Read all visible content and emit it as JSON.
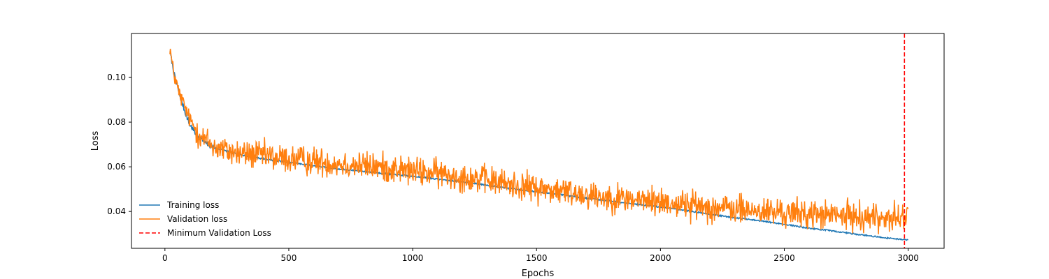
{
  "chart_data": {
    "type": "line",
    "title": "",
    "xlabel": "Epochs",
    "ylabel": "Loss",
    "xlim": [
      -135,
      3145
    ],
    "ylim": [
      0.0235,
      0.1197
    ],
    "x_ticks": [
      0,
      500,
      1000,
      1500,
      2000,
      2500,
      3000
    ],
    "x_tick_labels": [
      "0",
      "500",
      "1000",
      "1500",
      "2000",
      "2500",
      "3000"
    ],
    "y_ticks": [
      0.04,
      0.06,
      0.08,
      0.1
    ],
    "y_tick_labels": [
      "0.04",
      "0.06",
      "0.08",
      "0.10"
    ],
    "grid": false,
    "legend_position": "lower-left",
    "series": [
      {
        "name": "Training loss",
        "color": "#1f77b4",
        "style": "solid",
        "x": [
          20,
          40,
          60,
          80,
          100,
          130,
          160,
          200,
          250,
          300,
          400,
          500,
          600,
          700,
          800,
          900,
          1000,
          1100,
          1200,
          1300,
          1400,
          1500,
          1600,
          1700,
          1800,
          1900,
          2000,
          2100,
          2200,
          2300,
          2400,
          2500,
          2600,
          2700,
          2800,
          2900,
          3000
        ],
        "y": [
          0.112,
          0.1,
          0.092,
          0.085,
          0.079,
          0.074,
          0.071,
          0.0685,
          0.067,
          0.0655,
          0.0635,
          0.062,
          0.0605,
          0.059,
          0.058,
          0.0568,
          0.0558,
          0.0545,
          0.0533,
          0.0518,
          0.0502,
          0.0488,
          0.0475,
          0.046,
          0.0447,
          0.0433,
          0.042,
          0.0405,
          0.0388,
          0.0372,
          0.0358,
          0.0343,
          0.0325,
          0.0312,
          0.0297,
          0.0283,
          0.0272
        ]
      },
      {
        "name": "Validation loss",
        "color": "#ff7f0e",
        "style": "solid",
        "x": [
          20,
          30,
          40,
          60,
          80,
          100,
          130,
          160,
          200,
          250,
          300,
          350,
          400,
          450,
          500,
          550,
          600,
          650,
          700,
          750,
          800,
          850,
          900,
          950,
          1000,
          1050,
          1100,
          1150,
          1200,
          1250,
          1300,
          1350,
          1400,
          1450,
          1500,
          1550,
          1600,
          1650,
          1700,
          1750,
          1800,
          1850,
          1900,
          1950,
          2000,
          2050,
          2100,
          2150,
          2200,
          2250,
          2300,
          2350,
          2400,
          2450,
          2500,
          2550,
          2600,
          2650,
          2700,
          2750,
          2800,
          2850,
          2900,
          2950,
          3000
        ],
        "y": [
          0.114,
          0.105,
          0.1,
          0.092,
          0.087,
          0.081,
          0.076,
          0.072,
          0.069,
          0.067,
          0.066,
          0.0655,
          0.065,
          0.064,
          0.0635,
          0.063,
          0.0625,
          0.062,
          0.0615,
          0.061,
          0.0605,
          0.06,
          0.0595,
          0.0588,
          0.058,
          0.0575,
          0.057,
          0.0563,
          0.0555,
          0.055,
          0.054,
          0.053,
          0.052,
          0.0512,
          0.0505,
          0.0498,
          0.049,
          0.0485,
          0.0478,
          0.047,
          0.0463,
          0.0458,
          0.0452,
          0.0448,
          0.0443,
          0.0437,
          0.0432,
          0.0426,
          0.042,
          0.0415,
          0.041,
          0.0405,
          0.04,
          0.0397,
          0.0393,
          0.039,
          0.0388,
          0.0385,
          0.0382,
          0.038,
          0.0378,
          0.0375,
          0.0373,
          0.037,
          0.0368
        ],
        "noise_amplitude": 0.0065
      },
      {
        "name": "Minimum Validation Loss",
        "color": "#ff0000",
        "style": "dashed",
        "vertical_line_x": 2985
      }
    ]
  }
}
